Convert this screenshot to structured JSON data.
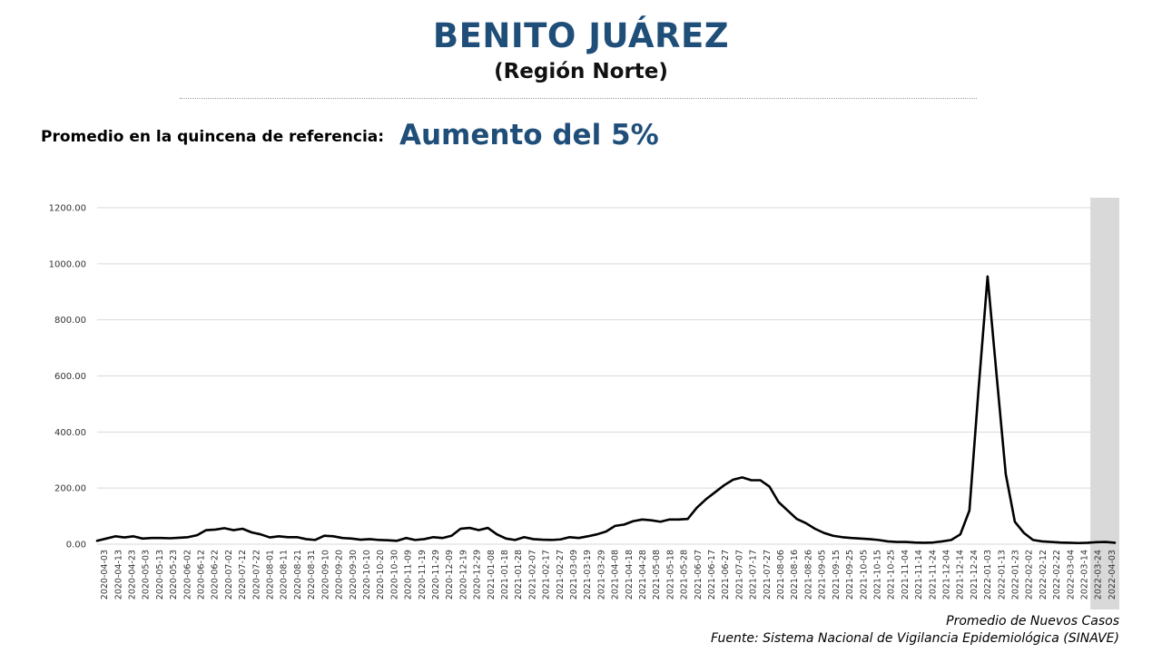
{
  "header": {
    "title": "BENITO JUÁREZ",
    "subtitle": "(Región Norte)"
  },
  "reference": {
    "label": "Promedio en la quincena de referencia:",
    "value": "Aumento del 5%"
  },
  "colors": {
    "title": "#1f4e79",
    "line": "#000000",
    "grid": "#d9d9d9",
    "shade": "#d9d9d9"
  },
  "chart_data": {
    "type": "line",
    "series": [
      {
        "values": [
          12,
          20,
          28,
          24,
          28,
          20,
          22,
          22,
          21,
          23,
          25,
          32,
          50,
          52,
          57,
          50,
          55,
          42,
          35,
          24,
          28,
          25,
          25,
          18,
          15,
          30,
          28,
          22,
          20,
          16,
          18,
          15,
          14,
          12,
          22,
          15,
          18,
          25,
          22,
          30,
          55,
          58,
          50,
          58,
          35,
          20,
          15,
          25,
          18,
          16,
          15,
          17,
          25,
          22,
          28,
          35,
          45,
          65,
          70,
          82,
          88,
          85,
          80,
          88,
          88,
          90,
          130,
          160,
          185,
          210,
          230,
          238,
          228,
          228,
          205,
          150,
          120,
          90,
          75,
          55,
          40,
          30,
          25,
          22,
          20,
          18,
          15,
          10,
          8,
          8,
          6,
          5,
          6,
          10,
          15,
          35,
          120,
          550,
          955,
          600,
          250,
          80,
          40,
          15,
          10,
          8,
          6,
          5,
          4,
          5,
          7,
          8,
          5
        ]
      }
    ],
    "x_ticks": [
      "2020-04-03",
      "2020-04-13",
      "2020-04-23",
      "2020-05-03",
      "2020-05-13",
      "2020-05-23",
      "2020-06-02",
      "2020-06-12",
      "2020-06-22",
      "2020-07-02",
      "2020-07-12",
      "2020-07-22",
      "2020-08-01",
      "2020-08-11",
      "2020-08-21",
      "2020-08-31",
      "2020-09-10",
      "2020-09-20",
      "2020-09-30",
      "2020-10-10",
      "2020-10-20",
      "2020-10-30",
      "2020-11-09",
      "2020-11-19",
      "2020-11-29",
      "2020-12-09",
      "2020-12-19",
      "2020-12-29",
      "2021-01-08",
      "2021-01-18",
      "2021-01-28",
      "2021-02-07",
      "2021-02-17",
      "2021-02-27",
      "2021-03-09",
      "2021-03-19",
      "2021-03-29",
      "2021-04-08",
      "2021-04-18",
      "2021-04-28",
      "2021-05-08",
      "2021-05-18",
      "2021-05-28",
      "2021-06-07",
      "2021-06-17",
      "2021-06-27",
      "2021-07-07",
      "2021-07-17",
      "2021-07-27",
      "2021-08-06",
      "2021-08-16",
      "2021-08-26",
      "2021-09-05",
      "2021-09-15",
      "2021-09-25",
      "2021-10-05",
      "2021-10-15",
      "2021-10-25",
      "2021-11-04",
      "2021-11-14",
      "2021-11-24",
      "2021-12-04",
      "2021-12-14",
      "2021-12-24",
      "2022-01-03",
      "2022-01-13",
      "2022-01-23",
      "2022-02-02",
      "2022-02-12",
      "2022-02-22",
      "2022-03-04",
      "2022-03-14",
      "2022-03-24",
      "2022-04-03"
    ],
    "y_ticks": [
      "0.00",
      "200.00",
      "400.00",
      "600.00",
      "800.00",
      "1000.00",
      "1200.00"
    ],
    "ylim": [
      0,
      1200
    ],
    "grid": true,
    "shaded_region": {
      "from": "2022-03-24",
      "to": "2022-04-03"
    },
    "series_label": "Promedio de Nuevos Casos"
  },
  "footer": {
    "series_label": "Promedio de Nuevos Casos",
    "source": "Fuente: Sistema Nacional de Vigilancia Epidemiológica (SINAVE)"
  }
}
